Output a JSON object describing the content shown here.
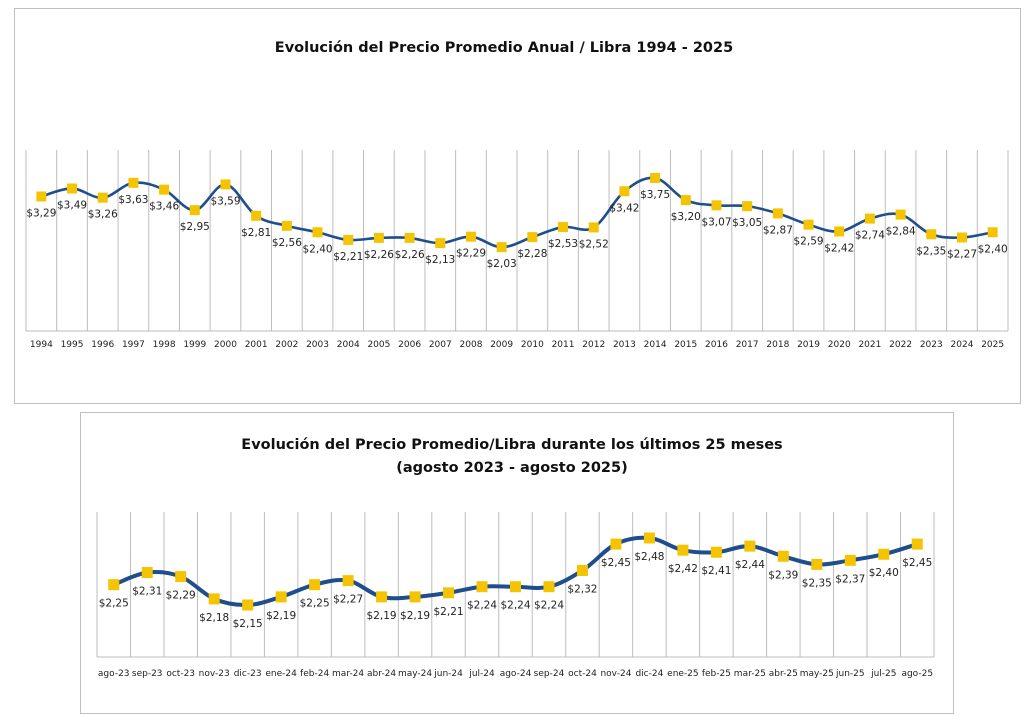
{
  "colors": {
    "line": "#1f4e8c",
    "marker": "#f5c400",
    "grid": "#bdbdbd",
    "frame": "#bfbfbf"
  },
  "chart_data": [
    {
      "id": "annual",
      "type": "line",
      "title": "Evolución del Precio Promedio Anual / Libra 1994 - 2025",
      "subtitle": "",
      "xlabel": "",
      "ylabel": "",
      "grid": "vertical",
      "legend": "none",
      "currency_prefix": "$",
      "decimal_separator": ",",
      "categories": [
        "1994",
        "1995",
        "1996",
        "1997",
        "1998",
        "1999",
        "2000",
        "2001",
        "2002",
        "2003",
        "2004",
        "2005",
        "2006",
        "2007",
        "2008",
        "2009",
        "2010",
        "2011",
        "2012",
        "2013",
        "2014",
        "2015",
        "2016",
        "2017",
        "2018",
        "2019",
        "2020",
        "2021",
        "2022",
        "2023",
        "2024",
        "2025"
      ],
      "series": [
        {
          "name": "Precio Promedio Anual / Libra",
          "values": [
            3.29,
            3.49,
            3.26,
            3.63,
            3.46,
            2.95,
            3.59,
            2.81,
            2.56,
            2.4,
            2.21,
            2.26,
            2.26,
            2.13,
            2.29,
            2.03,
            2.28,
            2.53,
            2.52,
            3.42,
            3.75,
            3.2,
            3.07,
            3.05,
            2.87,
            2.59,
            2.42,
            2.74,
            2.84,
            2.35,
            2.27,
            2.4
          ],
          "labels": [
            "$3,29",
            "$3,49",
            "$3,26",
            "$3,63",
            "$3,46",
            "$2,95",
            "$3,59",
            "$2,81",
            "$2,56",
            "$2,40",
            "$2,21",
            "$2,26",
            "$2,26",
            "$2,13",
            "$2,29",
            "$2,03",
            "$2,28",
            "$2,53",
            "$2,52",
            "$3,42",
            "$3,75",
            "$3,20",
            "$3,07",
            "$3,05",
            "$2,87",
            "$2,59",
            "$2,42",
            "$2,74",
            "$2,84",
            "$2,35",
            "$2,27",
            "$2,40"
          ]
        }
      ]
    },
    {
      "id": "monthly",
      "type": "line",
      "title": "Evolución del Precio Promedio/Libra durante los últimos 25 meses",
      "subtitle": "(agosto 2023 - agosto 2025)",
      "xlabel": "",
      "ylabel": "",
      "grid": "vertical",
      "legend": "none",
      "currency_prefix": "$",
      "decimal_separator": ",",
      "categories": [
        "ago-23",
        "sep-23",
        "oct-23",
        "nov-23",
        "dic-23",
        "ene-24",
        "feb-24",
        "mar-24",
        "abr-24",
        "may-24",
        "jun-24",
        "jul-24",
        "ago-24",
        "sep-24",
        "oct-24",
        "nov-24",
        "dic-24",
        "ene-25",
        "feb-25",
        "mar-25",
        "abr-25",
        "may-25",
        "jun-25",
        "jul-25",
        "ago-25"
      ],
      "series": [
        {
          "name": "Precio Promedio/Libra",
          "values": [
            2.25,
            2.31,
            2.29,
            2.18,
            2.15,
            2.19,
            2.25,
            2.27,
            2.19,
            2.19,
            2.21,
            2.24,
            2.24,
            2.24,
            2.32,
            2.45,
            2.48,
            2.42,
            2.41,
            2.44,
            2.39,
            2.35,
            2.37,
            2.4,
            2.45
          ],
          "labels": [
            "$2,25",
            "$2,31",
            "$2,29",
            "$2,18",
            "$2,15",
            "$2,19",
            "$2,25",
            "$2,27",
            "$2,19",
            "$2,19",
            "$2,21",
            "$2,24",
            "$2,24",
            "$2,24",
            "$2,32",
            "$2,45",
            "$2,48",
            "$2,42",
            "$2,41",
            "$2,44",
            "$2,39",
            "$2,35",
            "$2,37",
            "$2,40",
            "$2,45"
          ]
        }
      ]
    }
  ]
}
